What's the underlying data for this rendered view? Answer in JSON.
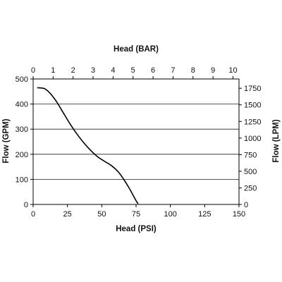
{
  "chart_data": {
    "type": "line",
    "title": "",
    "xlabel": "Head (PSI)",
    "x2label": "Head (BAR)",
    "ylabel": "Flow (GPM)",
    "y2label": "Flow (LPM)",
    "xlim": [
      0,
      150
    ],
    "ylim": [
      0,
      500
    ],
    "x2lim": [
      0,
      10.3
    ],
    "y2lim": [
      0,
      1890
    ],
    "x_ticks": [
      "0",
      "25",
      "50",
      "75",
      "100",
      "125",
      "150"
    ],
    "x2_ticks": [
      "0",
      "1",
      "2",
      "3",
      "4",
      "5",
      "6",
      "7",
      "8",
      "9",
      "10"
    ],
    "y_ticks": [
      "0",
      "100",
      "200",
      "300",
      "400",
      "500"
    ],
    "y2_ticks": [
      "0",
      "250",
      "500",
      "750",
      "1000",
      "1250",
      "1500",
      "1750"
    ],
    "grid": "horizontal",
    "series": [
      {
        "color": "#000000",
        "x": [
          3,
          8,
          12,
          17,
          22,
          27,
          32,
          37,
          42,
          47,
          52,
          57,
          62,
          66,
          70,
          73,
          75,
          76.5
        ],
        "y": [
          465,
          462,
          445,
          410,
          365,
          320,
          280,
          245,
          215,
          190,
          172,
          155,
          130,
          100,
          65,
          35,
          15,
          3
        ]
      }
    ]
  }
}
